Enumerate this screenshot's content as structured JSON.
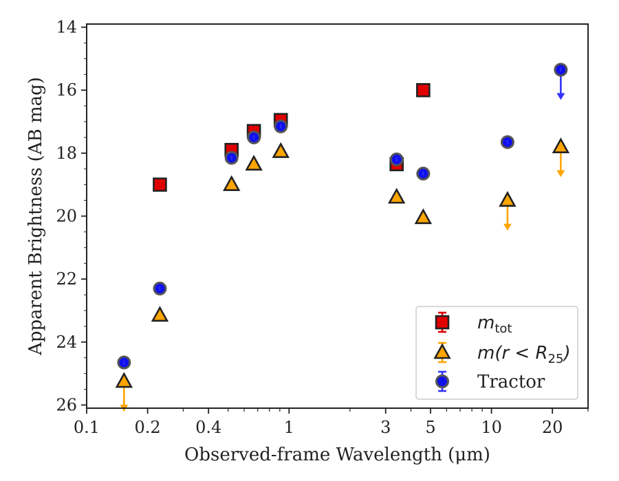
{
  "chart_data": {
    "type": "scatter",
    "xlabel": "Observed-frame Wavelength (μm)",
    "ylabel": "Apparent Brightness (AB mag)",
    "xscale": "log",
    "xlim": [
      0.1,
      30
    ],
    "ylim": [
      26.1,
      13.9
    ],
    "y_inverted": true,
    "xticks": [
      0.1,
      0.2,
      0.4,
      1,
      3,
      5,
      10,
      20
    ],
    "xtick_labels": [
      "0.1",
      "0.2",
      "0.4",
      "1",
      "3",
      "5",
      "10",
      "20"
    ],
    "yticks": [
      14,
      16,
      18,
      20,
      22,
      24,
      26
    ],
    "ytick_labels": [
      "14",
      "16",
      "18",
      "20",
      "22",
      "24",
      "26"
    ],
    "grid": false,
    "legend_position": "lower-right",
    "series": [
      {
        "name": "m_tot",
        "legend_label": "m",
        "legend_sub": "tot",
        "marker": "square",
        "color": "#e00000",
        "errcolor": "#e00000",
        "points": [
          {
            "x": 0.23,
            "y": 19.0
          },
          {
            "x": 0.52,
            "y": 17.9
          },
          {
            "x": 0.67,
            "y": 17.3
          },
          {
            "x": 0.91,
            "y": 16.95
          },
          {
            "x": 3.4,
            "y": 18.35
          },
          {
            "x": 4.6,
            "y": 16.0
          }
        ]
      },
      {
        "name": "m(r<R25)",
        "legend_label": "m(r < R",
        "legend_sub": "25",
        "legend_tail": ")",
        "marker": "triangle",
        "color": "#ffa500",
        "errcolor": "#ffa500",
        "points": [
          {
            "x": 0.153,
            "y": 25.25,
            "upper_limit": true
          },
          {
            "x": 0.23,
            "y": 23.15
          },
          {
            "x": 0.52,
            "y": 19.0
          },
          {
            "x": 0.67,
            "y": 18.35
          },
          {
            "x": 0.91,
            "y": 17.95
          },
          {
            "x": 3.4,
            "y": 19.4
          },
          {
            "x": 4.6,
            "y": 20.05
          },
          {
            "x": 12.0,
            "y": 19.5,
            "upper_limit": true
          },
          {
            "x": 22.0,
            "y": 17.8,
            "upper_limit": true
          }
        ]
      },
      {
        "name": "Tractor",
        "legend_label": "Tractor",
        "marker": "circle",
        "color": "#1010ee",
        "errcolor": "#3333ff",
        "points": [
          {
            "x": 0.153,
            "y": 24.65
          },
          {
            "x": 0.23,
            "y": 22.3
          },
          {
            "x": 0.52,
            "y": 18.15
          },
          {
            "x": 0.67,
            "y": 17.5
          },
          {
            "x": 0.91,
            "y": 17.15
          },
          {
            "x": 3.4,
            "y": 18.2
          },
          {
            "x": 4.6,
            "y": 18.65
          },
          {
            "x": 12.0,
            "y": 17.65
          },
          {
            "x": 22.0,
            "y": 15.35,
            "upper_limit": true
          }
        ]
      }
    ]
  }
}
